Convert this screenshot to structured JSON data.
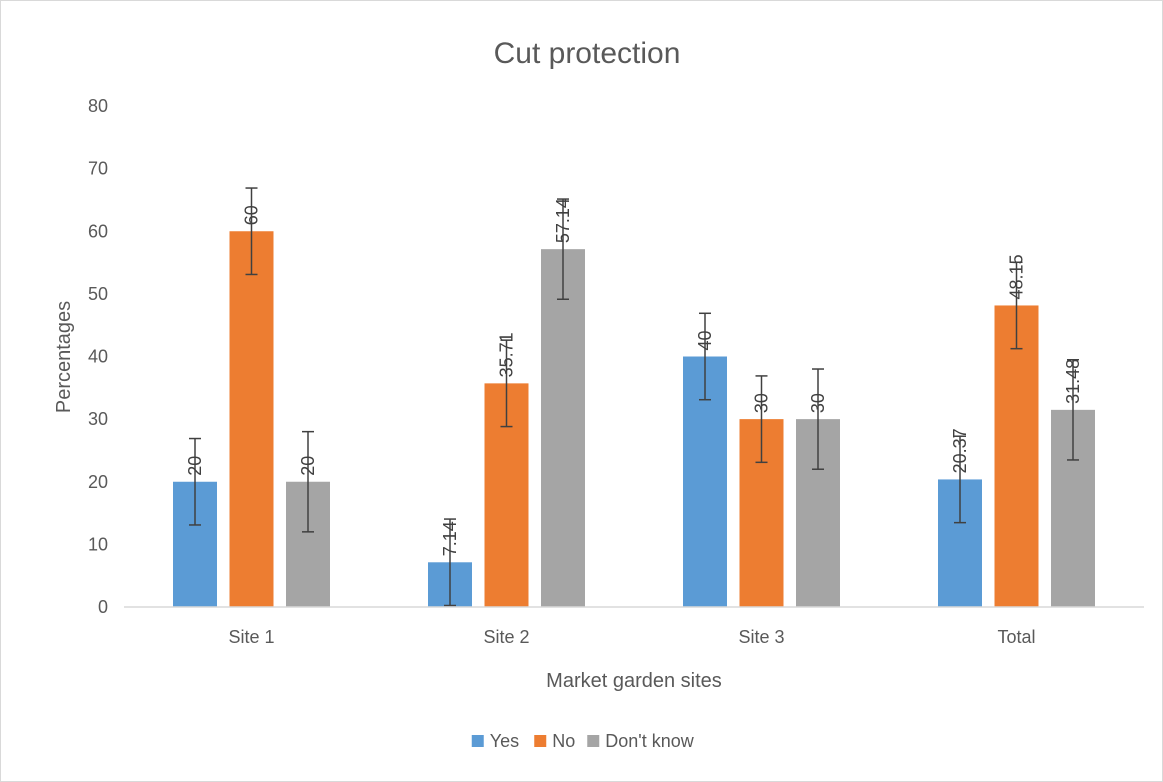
{
  "chart_data": {
    "type": "bar",
    "title": "Cut protection",
    "xlabel": "Market garden sites",
    "ylabel": "Percentages",
    "categories": [
      "Site 1",
      "Site 2",
      "Site 3",
      "Total"
    ],
    "ylim": [
      0,
      80
    ],
    "yticks": [
      0,
      10,
      20,
      30,
      40,
      50,
      60,
      70,
      80
    ],
    "grid": false,
    "legend_position": "bottom",
    "error_bars": true,
    "series": [
      {
        "name": "Yes",
        "color": "#5b9bd5",
        "values": [
          20,
          7.14,
          40,
          20.37
        ],
        "labels": [
          "20",
          "7.14",
          "40",
          "20.37"
        ],
        "error": [
          6.9,
          6.9,
          6.9,
          6.9
        ]
      },
      {
        "name": "No",
        "color": "#ed7d31",
        "values": [
          60,
          35.71,
          30,
          48.15
        ],
        "labels": [
          "60",
          "35.71",
          "30",
          "48.15"
        ],
        "error": [
          6.9,
          6.9,
          6.9,
          6.9
        ]
      },
      {
        "name": "Don't know",
        "color": "#a5a5a5",
        "values": [
          20,
          57.14,
          30,
          31.48
        ],
        "labels": [
          "20",
          "57.14",
          "30",
          "31.48"
        ],
        "error": [
          8,
          8,
          8,
          8
        ]
      }
    ]
  }
}
